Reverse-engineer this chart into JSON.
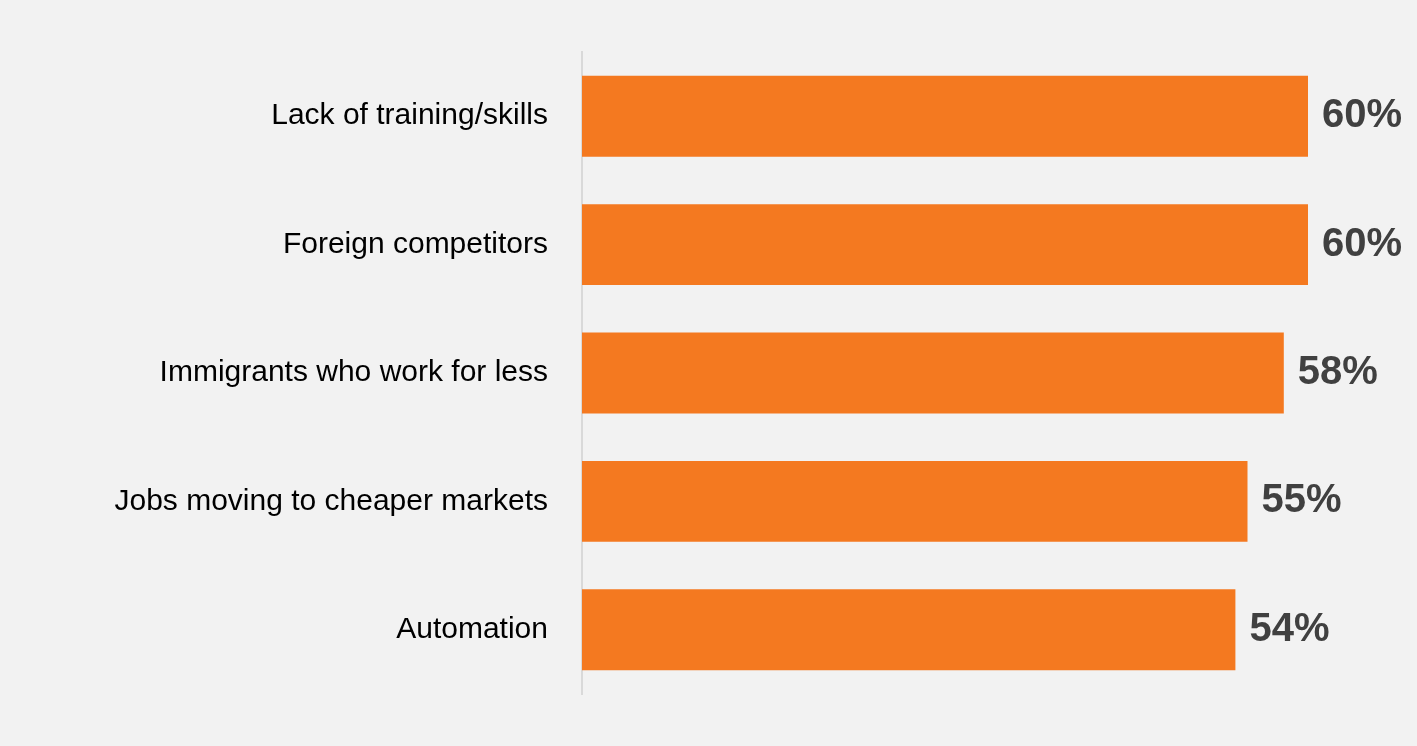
{
  "chart_data": {
    "type": "bar",
    "orientation": "horizontal",
    "categories": [
      "Lack of training/skills",
      "Foreign competitors",
      "Immigrants who work for less",
      "Jobs moving to cheaper markets",
      "Automation"
    ],
    "values": [
      60,
      60,
      58,
      55,
      54
    ],
    "value_labels": [
      "60%",
      "60%",
      "58%",
      "55%",
      "54%"
    ],
    "color": "#f47920",
    "legend": false
  }
}
